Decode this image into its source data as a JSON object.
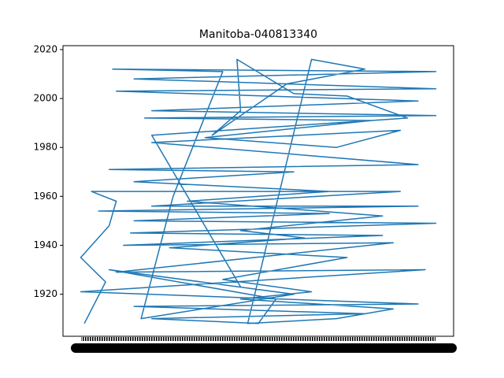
{
  "chart_data": {
    "type": "line",
    "title": "Manitoba-040813340",
    "x": [
      1,
      7,
      0,
      8,
      10,
      3,
      90,
      20,
      95,
      5,
      70,
      15,
      100,
      14,
      85,
      12,
      88,
      10,
      97,
      0,
      95,
      15,
      80,
      20,
      50,
      55,
      8,
      60,
      17,
      26,
      40,
      9,
      100,
      15,
      100,
      10,
      95,
      20,
      100,
      18,
      82,
      35,
      72,
      90,
      20,
      95,
      8,
      60,
      15,
      70,
      30,
      85,
      45,
      63,
      25,
      75,
      40,
      65,
      45,
      88,
      72,
      47,
      65,
      80,
      58,
      37,
      45,
      44,
      60,
      75,
      92,
      20,
      45
    ],
    "series": [
      {
        "color": "#1f77b4",
        "values": [
          1908,
          1925,
          1935,
          1948,
          1958,
          1962,
          1962,
          1956,
          1956,
          1954,
          1953,
          1950,
          1949,
          1945,
          1944,
          1940,
          1941,
          1929,
          1930,
          1921,
          1916,
          1915,
          1912,
          1910,
          1908,
          1918,
          1930,
          1920,
          1910,
          1960,
          2011,
          2012,
          2011,
          2008,
          2004,
          2003,
          1999,
          1995,
          1993,
          1992,
          1991,
          1984,
          1980,
          1987,
          1982,
          1973,
          1971,
          1970,
          1966,
          1962,
          1958,
          1952,
          1946,
          1943,
          1939,
          1935,
          1926,
          1921,
          1918,
          1914,
          1910,
          1908,
          2016,
          2012,
          2006,
          1985,
          1995,
          2016,
          2002,
          2001,
          1992,
          1985,
          1923
        ]
      }
    ],
    "xlim": [
      -5,
      105
    ],
    "ylim": [
      1902.8,
      2021.6
    ],
    "yticks": [
      1920,
      1940,
      1960,
      1980,
      2000,
      2020
    ]
  }
}
